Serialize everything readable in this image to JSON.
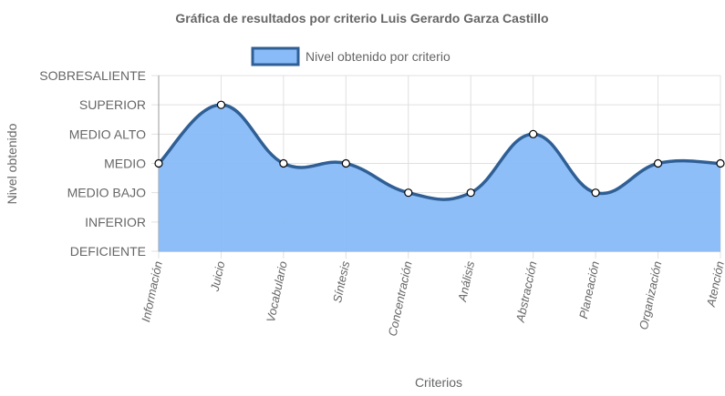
{
  "chart_data": {
    "type": "area",
    "title": "Gráfica de resultados por criterio Luis Gerardo Garza Castillo",
    "xlabel": "Criterios",
    "ylabel": "Nivel obtenido",
    "y_levels": [
      "DEFICIENTE",
      "INFERIOR",
      "MEDIO BAJO",
      "MEDIO",
      "MEDIO ALTO",
      "SUPERIOR",
      "SOBRESALIENTE"
    ],
    "ylim": [
      0,
      6
    ],
    "categories": [
      "Información",
      "Juicio",
      "Vocabulario",
      "Síntesis",
      "Concentración",
      "Análisis",
      "Abstracción",
      "Planeación",
      "Organización",
      "Atención"
    ],
    "series": [
      {
        "name": "Nivel obtenido por criterio",
        "values": [
          3,
          5,
          3,
          3,
          2,
          2,
          4,
          2,
          3,
          3
        ]
      }
    ],
    "grid": true,
    "legend_position": "top",
    "colors": {
      "fill": "#88bbf7",
      "line": "#2f5f94",
      "grid": "#e0e0e0",
      "axis": "#999999",
      "text": "#666666"
    }
  }
}
